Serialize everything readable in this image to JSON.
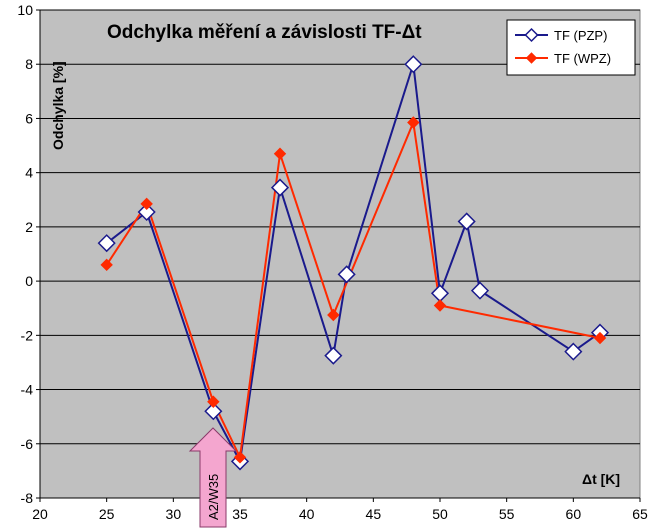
{
  "chart_data": {
    "type": "line",
    "title": "Odchylka měření a závislosti TF-Δt",
    "xlabel": "Δt [K]",
    "ylabel": "Odchylka [%]",
    "xlim": [
      20,
      65
    ],
    "ylim": [
      -8,
      10
    ],
    "xticks": [
      20,
      25,
      30,
      35,
      40,
      45,
      50,
      55,
      60,
      65
    ],
    "yticks": [
      -8,
      -6,
      -4,
      -2,
      0,
      2,
      4,
      6,
      8,
      10
    ],
    "grid": "horizontal",
    "plot_background": "#c0c0c0",
    "legend_position": "top-right",
    "annotation": {
      "label": "A2/W35",
      "x": 33,
      "color": "#f4a6cf"
    },
    "series": [
      {
        "name": "TF (PZP)",
        "color": "#1a1a8c",
        "marker": "open-diamond",
        "x": [
          25,
          28,
          33,
          35,
          38,
          42,
          43,
          48,
          50,
          52,
          53,
          60,
          62
        ],
        "y": [
          1.4,
          2.55,
          -4.8,
          -6.65,
          3.45,
          -2.75,
          0.25,
          8.0,
          -0.45,
          2.2,
          -0.35,
          -2.6,
          -1.9
        ]
      },
      {
        "name": "TF (WPZ)",
        "color": "#ff2a00",
        "marker": "filled-diamond",
        "x": [
          25,
          28,
          33,
          35,
          38,
          42,
          48,
          50,
          62
        ],
        "y": [
          0.6,
          2.85,
          -4.45,
          -6.5,
          4.7,
          -1.25,
          5.85,
          -0.9,
          -2.1
        ]
      }
    ]
  }
}
